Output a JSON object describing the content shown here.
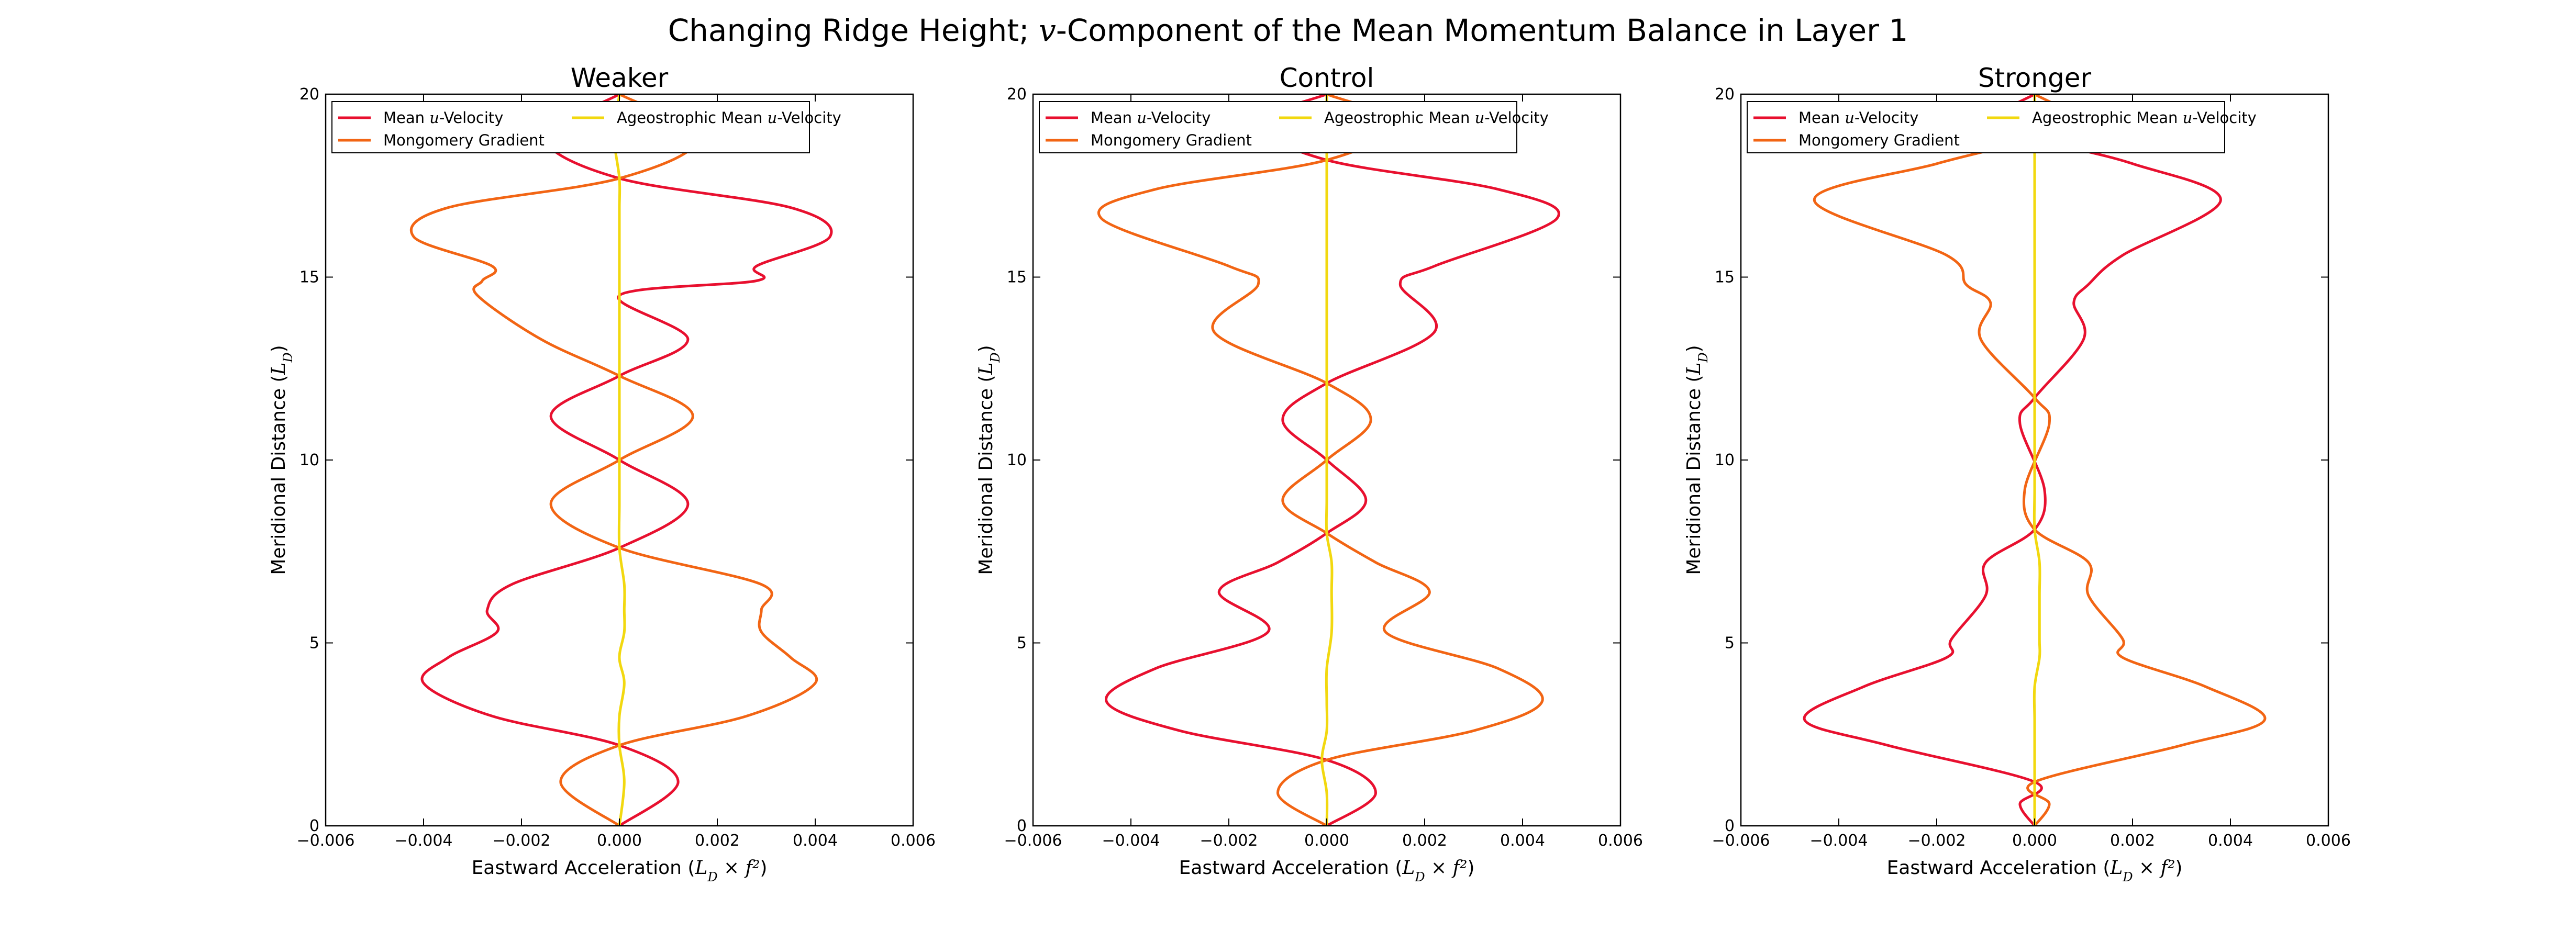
{
  "suptitle": {
    "prefix": "Changing Ridge Height; ",
    "math": "v",
    "suffix": "-Component of the Mean Momentum Balance in Layer 1"
  },
  "chart_data": [
    {
      "type": "line",
      "title": "Weaker",
      "xlabel": "Eastward Acceleration (L_D × f²)",
      "ylabel": "Meridional Distance (L_D)",
      "xlim": [
        -0.006,
        0.006
      ],
      "ylim": [
        0,
        20
      ],
      "xticks": [
        "−0.006",
        "−0.004",
        "−0.002",
        "0.000",
        "0.002",
        "0.004",
        "0.006"
      ],
      "yticks": [
        "0",
        "5",
        "10",
        "15",
        "20"
      ],
      "legend_placement": "upper-left, two columns",
      "colors": {
        "Mean u-Velocity": "#e8102f",
        "Mongomery Gradient": "#f26514",
        "Ageostrophic Mean u-Velocity": "#f2d80f"
      },
      "series": [
        {
          "name": "Mean u-Velocity",
          "x": [
            0.0,
            0.0012,
            0.0,
            -0.0026,
            -0.004,
            -0.0035,
            -0.0025,
            -0.0027,
            -0.0022,
            0.0,
            0.0014,
            0.0,
            -0.0014,
            0.0,
            0.0014,
            0.0,
            0.0028,
            0.0028,
            0.0043,
            0.0035,
            0.0,
            -0.0015,
            0.0
          ],
          "y": [
            0.0,
            1.2,
            2.2,
            3.0,
            3.9,
            4.6,
            5.3,
            5.9,
            6.6,
            7.6,
            8.8,
            10.0,
            11.2,
            12.3,
            13.3,
            14.5,
            14.9,
            15.3,
            16.1,
            16.9,
            17.7,
            18.8,
            20.0
          ]
        },
        {
          "name": "Mongomery Gradient",
          "x": [
            0.0,
            -0.0012,
            0.0,
            0.0026,
            0.004,
            0.0035,
            0.0029,
            0.0029,
            0.0029,
            0.0,
            -0.0014,
            0.0,
            0.0015,
            0.0,
            -0.0016,
            -0.0029,
            -0.0028,
            -0.0026,
            -0.0042,
            -0.0035,
            0.0,
            0.0016,
            0.0
          ],
          "y": [
            0.0,
            1.2,
            2.2,
            3.0,
            3.9,
            4.6,
            5.3,
            5.9,
            6.6,
            7.6,
            8.8,
            10.0,
            11.2,
            12.3,
            13.3,
            14.5,
            14.9,
            15.3,
            16.1,
            16.9,
            17.7,
            18.8,
            20.0
          ]
        },
        {
          "name": "Ageostrophic Mean u-Velocity",
          "x": [
            0.0,
            0.0001,
            0.0,
            0.0,
            0.0001,
            0.0,
            0.0001,
            0.0001,
            0.0001,
            0.0,
            0.0,
            0.0,
            0.0,
            0.0,
            0.0,
            0.0,
            0.0,
            0.0,
            0.0,
            0.0,
            0.0,
            -0.0001,
            0.0
          ],
          "y": [
            0.0,
            1.2,
            2.2,
            3.0,
            3.9,
            4.6,
            5.3,
            5.9,
            6.6,
            7.6,
            8.8,
            10.0,
            11.2,
            12.3,
            13.3,
            14.5,
            14.9,
            15.3,
            16.1,
            16.9,
            17.7,
            18.8,
            20.0
          ]
        }
      ]
    },
    {
      "type": "line",
      "title": "Control",
      "xlabel": "Eastward Acceleration (L_D × f²)",
      "ylabel": "Meridional Distance (L_D)",
      "xlim": [
        -0.006,
        0.006
      ],
      "ylim": [
        0,
        20
      ],
      "xticks": [
        "−0.006",
        "−0.004",
        "−0.002",
        "0.000",
        "0.002",
        "0.004",
        "0.006"
      ],
      "yticks": [
        "0",
        "5",
        "10",
        "15",
        "20"
      ],
      "legend_placement": "upper-left, two columns",
      "colors": {
        "Mean u-Velocity": "#e8102f",
        "Mongomery Gradient": "#f26514",
        "Ageostrophic Mean u-Velocity": "#f2d80f"
      },
      "series": [
        {
          "name": "Mean u-Velocity",
          "x": [
            0.0,
            0.001,
            0.0,
            -0.003,
            -0.0045,
            -0.0035,
            -0.0012,
            -0.0022,
            -0.001,
            0.0,
            0.0008,
            0.0,
            -0.0009,
            0.0,
            0.0022,
            0.0015,
            0.0022,
            0.0047,
            0.0035,
            0.0,
            -0.0014,
            0.0
          ],
          "y": [
            0.0,
            0.9,
            1.8,
            2.6,
            3.4,
            4.3,
            5.3,
            6.4,
            7.2,
            8.0,
            8.9,
            10.0,
            11.1,
            12.1,
            13.5,
            14.8,
            15.3,
            16.6,
            17.4,
            18.2,
            19.2,
            20.0
          ]
        },
        {
          "name": "Mongomery Gradient",
          "x": [
            0.0,
            -0.001,
            0.0,
            0.003,
            0.0044,
            0.0035,
            0.0012,
            0.0021,
            0.001,
            0.0,
            -0.0009,
            0.0,
            0.0009,
            0.0,
            -0.0023,
            -0.0014,
            -0.002,
            -0.0046,
            -0.0035,
            0.0,
            0.0014,
            0.0
          ],
          "y": [
            0.0,
            0.9,
            1.8,
            2.6,
            3.4,
            4.3,
            5.3,
            6.4,
            7.2,
            8.0,
            8.9,
            10.0,
            11.1,
            12.1,
            13.5,
            14.8,
            15.3,
            16.6,
            17.4,
            18.2,
            19.2,
            20.0
          ]
        },
        {
          "name": "Ageostrophic Mean u-Velocity",
          "x": [
            0.0,
            0.0,
            -0.0001,
            0.0,
            0.0,
            0.0,
            0.0001,
            0.0001,
            0.0001,
            0.0,
            0.0,
            0.0,
            0.0,
            0.0,
            0.0,
            0.0,
            0.0,
            0.0,
            0.0,
            0.0,
            0.0,
            0.0
          ],
          "y": [
            0.0,
            0.9,
            1.8,
            2.6,
            3.4,
            4.3,
            5.3,
            6.4,
            7.2,
            8.0,
            8.9,
            10.0,
            11.1,
            12.1,
            13.5,
            14.8,
            15.3,
            16.6,
            17.4,
            18.2,
            19.2,
            20.0
          ]
        }
      ]
    },
    {
      "type": "line",
      "title": "Stronger",
      "xlabel": "Eastward Acceleration (L_D × f²)",
      "ylabel": "Meridional Distance (L_D)",
      "xlim": [
        -0.006,
        0.006
      ],
      "ylim": [
        0,
        20
      ],
      "xticks": [
        "−0.006",
        "−0.004",
        "−0.002",
        "0.000",
        "0.002",
        "0.004",
        "0.006"
      ],
      "yticks": [
        "0",
        "5",
        "10",
        "15",
        "20"
      ],
      "legend_placement": "upper-left, two columns",
      "colors": {
        "Mean u-Velocity": "#e8102f",
        "Mongomery Gradient": "#f26514",
        "Ageostrophic Mean u-Velocity": "#f2d80f"
      },
      "series": [
        {
          "name": "Mean u-Velocity",
          "x": [
            0.0,
            -0.0003,
            0.0,
            -0.003,
            -0.0047,
            -0.0035,
            -0.0018,
            -0.0017,
            -0.001,
            -0.001,
            0.0,
            0.0002,
            -0.0003,
            0.0,
            0.001,
            0.0008,
            0.0011,
            0.0018,
            0.0038,
            0.002,
            0.0,
            -0.0007,
            0.0
          ],
          "y": [
            0.0,
            0.6,
            1.2,
            2.2,
            2.9,
            3.8,
            4.6,
            5.1,
            6.3,
            7.2,
            8.1,
            9.2,
            11.0,
            11.7,
            13.3,
            14.3,
            14.8,
            15.6,
            17.1,
            18.1,
            18.8,
            19.4,
            20.0
          ]
        },
        {
          "name": "Mongomery Gradient",
          "x": [
            0.0,
            0.0003,
            0.0,
            0.003,
            0.0047,
            0.0035,
            0.0018,
            0.0018,
            0.0011,
            0.0011,
            0.0,
            -0.0002,
            0.0003,
            0.0,
            -0.0011,
            -0.0009,
            -0.0014,
            -0.0018,
            -0.0045,
            -0.002,
            0.0,
            0.0007,
            0.0
          ],
          "y": [
            0.0,
            0.6,
            1.2,
            2.2,
            2.9,
            3.8,
            4.6,
            5.1,
            6.3,
            7.2,
            8.1,
            9.2,
            11.0,
            11.7,
            13.3,
            14.3,
            14.8,
            15.6,
            17.1,
            18.1,
            18.8,
            19.4,
            20.0
          ]
        },
        {
          "name": "Ageostrophic Mean u-Velocity",
          "x": [
            0.0,
            0.0,
            0.0,
            0.0,
            0.0,
            0.0,
            0.0001,
            0.0001,
            0.0001,
            0.0001,
            0.0,
            0.0,
            0.0,
            0.0,
            0.0,
            0.0,
            0.0,
            0.0,
            0.0,
            0.0,
            0.0,
            0.0,
            0.0
          ],
          "y": [
            0.0,
            0.6,
            1.2,
            2.2,
            2.9,
            3.8,
            4.6,
            5.1,
            6.3,
            7.2,
            8.1,
            9.2,
            11.0,
            11.7,
            13.3,
            14.3,
            14.8,
            15.6,
            17.1,
            18.1,
            18.8,
            19.4,
            20.0
          ]
        }
      ]
    }
  ]
}
